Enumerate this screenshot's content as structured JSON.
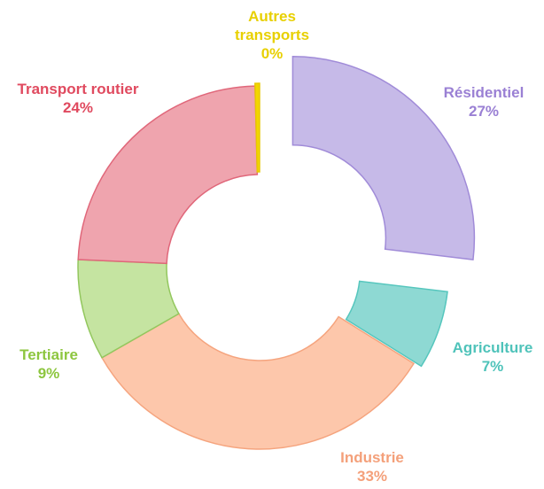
{
  "chart_data": {
    "type": "donut",
    "categories": [
      "Résidentiel",
      "Agriculture",
      "Industrie",
      "Tertiaire",
      "Transport routier",
      "Autres transports"
    ],
    "values": [
      27,
      7,
      33,
      9,
      24,
      0.4
    ],
    "value_labels": [
      "27%",
      "7%",
      "33%",
      "9%",
      "24%",
      "0%"
    ],
    "colors": [
      "#c6bae8",
      "#8ed9d3",
      "#fdc7ab",
      "#c5e4a1",
      "#efa4ae",
      "#f2d600"
    ],
    "stroke_colors": [
      "#a08bd8",
      "#55c6bd",
      "#f5a47e",
      "#93c75e",
      "#e0677a",
      "#e8c800"
    ],
    "label_colors": [
      "#9a80d4",
      "#4fc3ba",
      "#f4a07a",
      "#8dc63f",
      "#e04a5f",
      "#e8d000"
    ]
  }
}
